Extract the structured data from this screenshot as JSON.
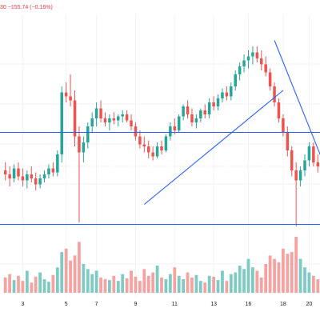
{
  "header": {
    "change_text": "30  −155.74 (−0.16%)"
  },
  "colors": {
    "up": "#26a69a",
    "down": "#ef5350",
    "vol_up": "#7fcbc4",
    "vol_down": "#f5a3a1",
    "line": "#2962ff",
    "grid": "#f0f3fa",
    "axis_text": "#131722",
    "header_text": "#f23645",
    "priceline": "#f7c6c6"
  },
  "chart_data": {
    "type": "candlestick",
    "title": "",
    "xlabel": "",
    "ylabel": "",
    "x_tick_labels": [
      "3",
      "5",
      "7",
      "9",
      "11",
      "13",
      "16",
      "18",
      "20"
    ],
    "y_axis_visible": false,
    "price_domain": [
      0,
      100
    ],
    "grid": true,
    "candles": [
      {
        "o": 38,
        "h": 42,
        "l": 33,
        "c": 36
      },
      {
        "o": 36,
        "h": 40,
        "l": 30,
        "c": 34
      },
      {
        "o": 34,
        "h": 41,
        "l": 32,
        "c": 39
      },
      {
        "o": 39,
        "h": 42,
        "l": 33,
        "c": 35
      },
      {
        "o": 35,
        "h": 39,
        "l": 30,
        "c": 33
      },
      {
        "o": 33,
        "h": 38,
        "l": 29,
        "c": 36
      },
      {
        "o": 36,
        "h": 40,
        "l": 32,
        "c": 34
      },
      {
        "o": 34,
        "h": 37,
        "l": 28,
        "c": 31
      },
      {
        "o": 31,
        "h": 36,
        "l": 29,
        "c": 34
      },
      {
        "o": 34,
        "h": 38,
        "l": 32,
        "c": 36
      },
      {
        "o": 36,
        "h": 41,
        "l": 34,
        "c": 39
      },
      {
        "o": 39,
        "h": 42,
        "l": 35,
        "c": 37
      },
      {
        "o": 37,
        "h": 48,
        "l": 35,
        "c": 46
      },
      {
        "o": 46,
        "h": 80,
        "l": 42,
        "c": 77
      },
      {
        "o": 77,
        "h": 82,
        "l": 72,
        "c": 75
      },
      {
        "o": 75,
        "h": 86,
        "l": 70,
        "c": 73
      },
      {
        "o": 73,
        "h": 78,
        "l": 50,
        "c": 55
      },
      {
        "o": 55,
        "h": 60,
        "l": 12,
        "c": 47
      },
      {
        "o": 47,
        "h": 55,
        "l": 42,
        "c": 52
      },
      {
        "o": 52,
        "h": 62,
        "l": 49,
        "c": 60
      },
      {
        "o": 60,
        "h": 67,
        "l": 57,
        "c": 64
      },
      {
        "o": 64,
        "h": 72,
        "l": 60,
        "c": 69
      },
      {
        "o": 69,
        "h": 73,
        "l": 62,
        "c": 64
      },
      {
        "o": 64,
        "h": 67,
        "l": 60,
        "c": 62
      },
      {
        "o": 62,
        "h": 66,
        "l": 58,
        "c": 64
      },
      {
        "o": 64,
        "h": 67,
        "l": 61,
        "c": 63
      },
      {
        "o": 63,
        "h": 66,
        "l": 60,
        "c": 65
      },
      {
        "o": 65,
        "h": 68,
        "l": 62,
        "c": 66
      },
      {
        "o": 66,
        "h": 68,
        "l": 62,
        "c": 63
      },
      {
        "o": 63,
        "h": 66,
        "l": 58,
        "c": 60
      },
      {
        "o": 60,
        "h": 62,
        "l": 53,
        "c": 55
      },
      {
        "o": 55,
        "h": 58,
        "l": 49,
        "c": 51
      },
      {
        "o": 51,
        "h": 55,
        "l": 47,
        "c": 50
      },
      {
        "o": 50,
        "h": 53,
        "l": 44,
        "c": 47
      },
      {
        "o": 47,
        "h": 50,
        "l": 43,
        "c": 45
      },
      {
        "o": 45,
        "h": 52,
        "l": 44,
        "c": 50
      },
      {
        "o": 50,
        "h": 53,
        "l": 46,
        "c": 48
      },
      {
        "o": 48,
        "h": 56,
        "l": 47,
        "c": 55
      },
      {
        "o": 55,
        "h": 62,
        "l": 53,
        "c": 60
      },
      {
        "o": 60,
        "h": 64,
        "l": 56,
        "c": 58
      },
      {
        "o": 58,
        "h": 66,
        "l": 57,
        "c": 65
      },
      {
        "o": 65,
        "h": 71,
        "l": 63,
        "c": 70
      },
      {
        "o": 70,
        "h": 73,
        "l": 64,
        "c": 66
      },
      {
        "o": 66,
        "h": 69,
        "l": 60,
        "c": 62
      },
      {
        "o": 62,
        "h": 66,
        "l": 59,
        "c": 64
      },
      {
        "o": 64,
        "h": 69,
        "l": 62,
        "c": 68
      },
      {
        "o": 68,
        "h": 71,
        "l": 64,
        "c": 66
      },
      {
        "o": 66,
        "h": 74,
        "l": 64,
        "c": 72
      },
      {
        "o": 72,
        "h": 75,
        "l": 68,
        "c": 70
      },
      {
        "o": 70,
        "h": 76,
        "l": 68,
        "c": 74
      },
      {
        "o": 74,
        "h": 79,
        "l": 72,
        "c": 77
      },
      {
        "o": 77,
        "h": 80,
        "l": 73,
        "c": 75
      },
      {
        "o": 75,
        "h": 82,
        "l": 73,
        "c": 80
      },
      {
        "o": 80,
        "h": 88,
        "l": 78,
        "c": 86
      },
      {
        "o": 86,
        "h": 92,
        "l": 83,
        "c": 90
      },
      {
        "o": 90,
        "h": 96,
        "l": 87,
        "c": 93
      },
      {
        "o": 93,
        "h": 98,
        "l": 89,
        "c": 95
      },
      {
        "o": 95,
        "h": 100,
        "l": 91,
        "c": 97
      },
      {
        "o": 97,
        "h": 100,
        "l": 92,
        "c": 94
      },
      {
        "o": 94,
        "h": 98,
        "l": 88,
        "c": 91
      },
      {
        "o": 91,
        "h": 95,
        "l": 85,
        "c": 87
      },
      {
        "o": 87,
        "h": 89,
        "l": 78,
        "c": 80
      },
      {
        "o": 80,
        "h": 82,
        "l": 70,
        "c": 72
      },
      {
        "o": 72,
        "h": 74,
        "l": 62,
        "c": 64
      },
      {
        "o": 64,
        "h": 66,
        "l": 55,
        "c": 57
      },
      {
        "o": 57,
        "h": 60,
        "l": 45,
        "c": 48
      },
      {
        "o": 48,
        "h": 50,
        "l": 35,
        "c": 38
      },
      {
        "o": 38,
        "h": 42,
        "l": 10,
        "c": 33
      },
      {
        "o": 33,
        "h": 40,
        "l": 30,
        "c": 38
      },
      {
        "o": 38,
        "h": 46,
        "l": 35,
        "c": 43
      },
      {
        "o": 43,
        "h": 52,
        "l": 40,
        "c": 50
      },
      {
        "o": 50,
        "h": 52,
        "l": 40,
        "c": 42
      },
      {
        "o": 42,
        "h": 46,
        "l": 37,
        "c": 40
      }
    ],
    "volume": [
      18,
      22,
      15,
      20,
      14,
      26,
      12,
      19,
      24,
      16,
      13,
      21,
      30,
      48,
      52,
      38,
      44,
      60,
      34,
      28,
      22,
      26,
      18,
      16,
      15,
      20,
      14,
      22,
      17,
      26,
      19,
      14,
      28,
      20,
      24,
      32,
      18,
      16,
      22,
      30,
      20,
      16,
      24,
      18,
      21,
      14,
      12,
      20,
      19,
      15,
      26,
      14,
      22,
      24,
      32,
      28,
      40,
      30,
      26,
      18,
      34,
      44,
      40,
      36,
      52,
      46,
      48,
      66,
      40,
      30,
      24,
      20,
      16
    ],
    "horizontal_levels": [
      {
        "name": "resistance",
        "value": 57
      },
      {
        "name": "support",
        "value": 11
      }
    ],
    "trendlines": [
      {
        "name": "rising",
        "from": {
          "i": 32,
          "v": 21
        },
        "to": {
          "i": 64,
          "v": 78
        }
      },
      {
        "name": "falling",
        "from": {
          "i": 62,
          "v": 103
        },
        "to": {
          "i": 74,
          "v": 38
        }
      }
    ]
  }
}
